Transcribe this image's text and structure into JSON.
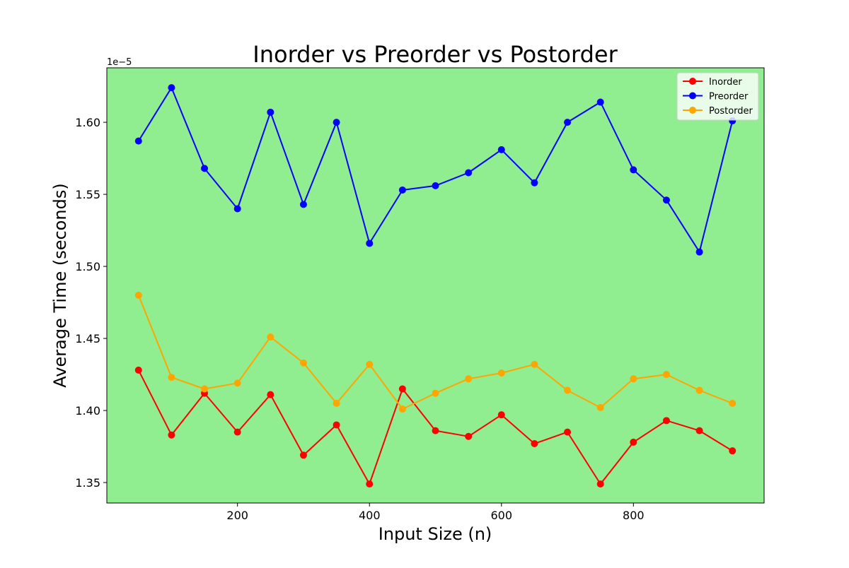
{
  "chart_data": {
    "type": "line",
    "title": "Inorder vs Preorder vs Postorder",
    "xlabel": "Input Size (n)",
    "ylabel": "Average Time (seconds)",
    "y_offset_label": "1e−5",
    "x": [
      50,
      100,
      150,
      200,
      250,
      300,
      350,
      400,
      450,
      500,
      550,
      600,
      650,
      700,
      750,
      800,
      850,
      900,
      950
    ],
    "xlim": [
      2,
      998
    ],
    "ylim": [
      1.3358,
      1.6378
    ],
    "x_ticks": [
      200,
      400,
      600,
      800
    ],
    "y_ticks": [
      1.35,
      1.4,
      1.45,
      1.5,
      1.55,
      1.6
    ],
    "y_tick_labels": [
      "1.35",
      "1.40",
      "1.45",
      "1.50",
      "1.55",
      "1.60"
    ],
    "grid": false,
    "background_color": "#90ee90",
    "legend_position": "top-right",
    "series": [
      {
        "name": "Inorder",
        "color": "#ff0000",
        "values": [
          1.428,
          1.383,
          1.412,
          1.385,
          1.411,
          1.369,
          1.39,
          1.349,
          1.415,
          1.386,
          1.382,
          1.397,
          1.377,
          1.385,
          1.349,
          1.378,
          1.393,
          1.386,
          1.372
        ]
      },
      {
        "name": "Preorder",
        "color": "#0000ff",
        "values": [
          1.587,
          1.624,
          1.568,
          1.54,
          1.607,
          1.543,
          1.6,
          1.516,
          1.553,
          1.556,
          1.565,
          1.581,
          1.558,
          1.6,
          1.614,
          1.567,
          1.546,
          1.51,
          1.601
        ]
      },
      {
        "name": "Postorder",
        "color": "#ffa500",
        "values": [
          1.48,
          1.423,
          1.415,
          1.419,
          1.451,
          1.433,
          1.405,
          1.432,
          1.401,
          1.412,
          1.422,
          1.426,
          1.432,
          1.414,
          1.402,
          1.422,
          1.425,
          1.414,
          1.405
        ]
      }
    ]
  }
}
